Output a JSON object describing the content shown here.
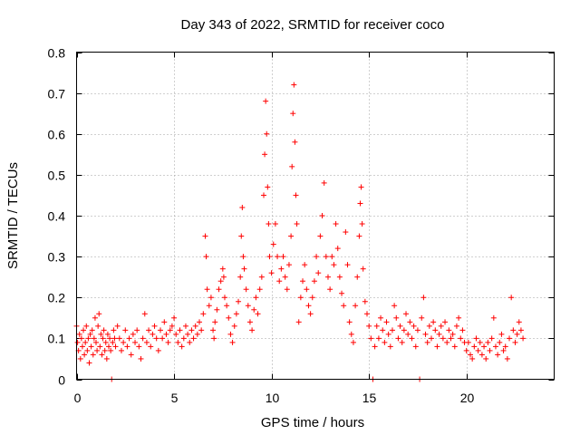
{
  "chart_data": {
    "type": "scatter",
    "title": "Day 343 of 2022, SRMTID for receiver coco",
    "xlabel": "GPS time / hours",
    "ylabel": "SRMTID / TECUs",
    "xlim": [
      0,
      24.5
    ],
    "ylim": [
      0,
      0.8
    ],
    "xticks": [
      0,
      5,
      10,
      15,
      20
    ],
    "xtick_labels": [
      "0",
      "5",
      "10",
      "15",
      "20"
    ],
    "yticks": [
      0,
      0.1,
      0.2,
      0.3,
      0.4,
      0.5,
      0.6,
      0.7,
      0.8
    ],
    "ytick_labels": [
      "0",
      "0.1",
      "0.2",
      "0.3",
      "0.4",
      "0.5",
      "0.6",
      "0.7",
      "0.8"
    ],
    "grid": true,
    "marker": "+",
    "color": "#ff0000",
    "series": [
      {
        "name": "SRMTID",
        "points": [
          [
            0.0,
            0.13
          ],
          [
            0.05,
            0.09
          ],
          [
            0.1,
            0.07
          ],
          [
            0.15,
            0.11
          ],
          [
            0.2,
            0.05
          ],
          [
            0.25,
            0.1
          ],
          [
            0.3,
            0.08
          ],
          [
            0.35,
            0.12
          ],
          [
            0.4,
            0.06
          ],
          [
            0.45,
            0.09
          ],
          [
            0.5,
            0.13
          ],
          [
            0.55,
            0.07
          ],
          [
            0.6,
            0.1
          ],
          [
            0.65,
            0.04
          ],
          [
            0.7,
            0.11
          ],
          [
            0.75,
            0.08
          ],
          [
            0.8,
            0.12
          ],
          [
            0.85,
            0.06
          ],
          [
            0.9,
            0.1
          ],
          [
            0.95,
            0.15
          ],
          [
            1.0,
            0.09
          ],
          [
            1.05,
            0.07
          ],
          [
            1.1,
            0.13
          ],
          [
            1.15,
            0.16
          ],
          [
            1.2,
            0.08
          ],
          [
            1.25,
            0.11
          ],
          [
            1.3,
            0.06
          ],
          [
            1.35,
            0.1
          ],
          [
            1.4,
            0.12
          ],
          [
            1.45,
            0.07
          ],
          [
            1.5,
            0.09
          ],
          [
            1.55,
            0.05
          ],
          [
            1.6,
            0.11
          ],
          [
            1.65,
            0.08
          ],
          [
            1.7,
            0.1
          ],
          [
            1.75,
            0.07
          ],
          [
            1.8,
            0.0
          ],
          [
            1.85,
            0.09
          ],
          [
            1.9,
            0.12
          ],
          [
            1.95,
            0.1
          ],
          [
            2.0,
            0.08
          ],
          [
            2.1,
            0.13
          ],
          [
            2.2,
            0.1
          ],
          [
            2.3,
            0.07
          ],
          [
            2.4,
            0.09
          ],
          [
            2.5,
            0.12
          ],
          [
            2.6,
            0.08
          ],
          [
            2.7,
            0.1
          ],
          [
            2.8,
            0.06
          ],
          [
            2.9,
            0.11
          ],
          [
            3.0,
            0.09
          ],
          [
            3.1,
            0.12
          ],
          [
            3.2,
            0.08
          ],
          [
            3.3,
            0.05
          ],
          [
            3.4,
            0.1
          ],
          [
            3.5,
            0.16
          ],
          [
            3.6,
            0.09
          ],
          [
            3.7,
            0.12
          ],
          [
            3.8,
            0.08
          ],
          [
            3.9,
            0.11
          ],
          [
            4.0,
            0.13
          ],
          [
            4.1,
            0.1
          ],
          [
            4.2,
            0.07
          ],
          [
            4.3,
            0.12
          ],
          [
            4.4,
            0.1
          ],
          [
            4.5,
            0.14
          ],
          [
            4.6,
            0.11
          ],
          [
            4.7,
            0.09
          ],
          [
            4.8,
            0.12
          ],
          [
            4.9,
            0.13
          ],
          [
            5.0,
            0.15
          ],
          [
            5.1,
            0.11
          ],
          [
            5.2,
            0.09
          ],
          [
            5.3,
            0.12
          ],
          [
            5.4,
            0.08
          ],
          [
            5.5,
            0.1
          ],
          [
            5.6,
            0.13
          ],
          [
            5.7,
            0.11
          ],
          [
            5.8,
            0.09
          ],
          [
            5.9,
            0.12
          ],
          [
            6.0,
            0.1
          ],
          [
            6.1,
            0.13
          ],
          [
            6.2,
            0.11
          ],
          [
            6.3,
            0.14
          ],
          [
            6.4,
            0.12
          ],
          [
            6.5,
            0.16
          ],
          [
            6.6,
            0.35
          ],
          [
            6.65,
            0.3
          ],
          [
            6.7,
            0.22
          ],
          [
            6.8,
            0.18
          ],
          [
            6.9,
            0.2
          ],
          [
            7.0,
            0.12
          ],
          [
            7.05,
            0.1
          ],
          [
            7.1,
            0.14
          ],
          [
            7.2,
            0.17
          ],
          [
            7.3,
            0.22
          ],
          [
            7.4,
            0.24
          ],
          [
            7.5,
            0.27
          ],
          [
            7.55,
            0.25
          ],
          [
            7.6,
            0.2
          ],
          [
            7.7,
            0.18
          ],
          [
            7.8,
            0.15
          ],
          [
            7.9,
            0.11
          ],
          [
            8.0,
            0.09
          ],
          [
            8.1,
            0.13
          ],
          [
            8.2,
            0.16
          ],
          [
            8.3,
            0.19
          ],
          [
            8.4,
            0.25
          ],
          [
            8.45,
            0.35
          ],
          [
            8.5,
            0.42
          ],
          [
            8.55,
            0.3
          ],
          [
            8.6,
            0.27
          ],
          [
            8.7,
            0.22
          ],
          [
            8.8,
            0.18
          ],
          [
            8.9,
            0.14
          ],
          [
            9.0,
            0.12
          ],
          [
            9.1,
            0.17
          ],
          [
            9.2,
            0.2
          ],
          [
            9.3,
            0.16
          ],
          [
            9.4,
            0.22
          ],
          [
            9.5,
            0.25
          ],
          [
            9.6,
            0.45
          ],
          [
            9.65,
            0.55
          ],
          [
            9.7,
            0.68
          ],
          [
            9.75,
            0.6
          ],
          [
            9.8,
            0.47
          ],
          [
            9.85,
            0.38
          ],
          [
            9.9,
            0.3
          ],
          [
            10.0,
            0.26
          ],
          [
            10.1,
            0.33
          ],
          [
            10.2,
            0.38
          ],
          [
            10.3,
            0.3
          ],
          [
            10.4,
            0.24
          ],
          [
            10.5,
            0.27
          ],
          [
            10.6,
            0.3
          ],
          [
            10.7,
            0.25
          ],
          [
            10.8,
            0.22
          ],
          [
            10.9,
            0.28
          ],
          [
            11.0,
            0.35
          ],
          [
            11.05,
            0.52
          ],
          [
            11.1,
            0.65
          ],
          [
            11.15,
            0.72
          ],
          [
            11.2,
            0.58
          ],
          [
            11.25,
            0.45
          ],
          [
            11.3,
            0.38
          ],
          [
            11.4,
            0.14
          ],
          [
            11.5,
            0.2
          ],
          [
            11.6,
            0.24
          ],
          [
            11.7,
            0.28
          ],
          [
            11.8,
            0.22
          ],
          [
            11.9,
            0.18
          ],
          [
            12.0,
            0.16
          ],
          [
            12.1,
            0.2
          ],
          [
            12.2,
            0.24
          ],
          [
            12.3,
            0.3
          ],
          [
            12.4,
            0.26
          ],
          [
            12.5,
            0.35
          ],
          [
            12.6,
            0.4
          ],
          [
            12.7,
            0.48
          ],
          [
            12.8,
            0.3
          ],
          [
            12.9,
            0.25
          ],
          [
            13.0,
            0.22
          ],
          [
            13.1,
            0.3
          ],
          [
            13.2,
            0.28
          ],
          [
            13.3,
            0.38
          ],
          [
            13.4,
            0.32
          ],
          [
            13.5,
            0.25
          ],
          [
            13.6,
            0.21
          ],
          [
            13.7,
            0.18
          ],
          [
            13.8,
            0.36
          ],
          [
            13.9,
            0.28
          ],
          [
            14.0,
            0.14
          ],
          [
            14.1,
            0.11
          ],
          [
            14.2,
            0.09
          ],
          [
            14.3,
            0.18
          ],
          [
            14.4,
            0.25
          ],
          [
            14.5,
            0.35
          ],
          [
            14.55,
            0.43
          ],
          [
            14.6,
            0.47
          ],
          [
            14.65,
            0.38
          ],
          [
            14.7,
            0.27
          ],
          [
            14.8,
            0.19
          ],
          [
            14.9,
            0.16
          ],
          [
            15.0,
            0.13
          ],
          [
            15.1,
            0.1
          ],
          [
            15.2,
            0.0
          ],
          [
            15.3,
            0.08
          ],
          [
            15.4,
            0.13
          ],
          [
            15.5,
            0.1
          ],
          [
            15.6,
            0.15
          ],
          [
            15.7,
            0.12
          ],
          [
            15.8,
            0.09
          ],
          [
            15.9,
            0.14
          ],
          [
            16.0,
            0.11
          ],
          [
            16.1,
            0.08
          ],
          [
            16.2,
            0.12
          ],
          [
            16.3,
            0.18
          ],
          [
            16.4,
            0.15
          ],
          [
            16.5,
            0.1
          ],
          [
            16.6,
            0.13
          ],
          [
            16.7,
            0.09
          ],
          [
            16.8,
            0.12
          ],
          [
            16.9,
            0.16
          ],
          [
            17.0,
            0.11
          ],
          [
            17.1,
            0.14
          ],
          [
            17.2,
            0.1
          ],
          [
            17.3,
            0.13
          ],
          [
            17.4,
            0.08
          ],
          [
            17.5,
            0.12
          ],
          [
            17.6,
            0.0
          ],
          [
            17.7,
            0.15
          ],
          [
            17.8,
            0.2
          ],
          [
            17.9,
            0.11
          ],
          [
            18.0,
            0.09
          ],
          [
            18.1,
            0.13
          ],
          [
            18.2,
            0.1
          ],
          [
            18.3,
            0.14
          ],
          [
            18.4,
            0.12
          ],
          [
            18.5,
            0.08
          ],
          [
            18.6,
            0.11
          ],
          [
            18.7,
            0.13
          ],
          [
            18.8,
            0.1
          ],
          [
            18.9,
            0.14
          ],
          [
            19.0,
            0.09
          ],
          [
            19.1,
            0.12
          ],
          [
            19.2,
            0.1
          ],
          [
            19.3,
            0.11
          ],
          [
            19.4,
            0.08
          ],
          [
            19.5,
            0.13
          ],
          [
            19.6,
            0.15
          ],
          [
            19.7,
            0.1
          ],
          [
            19.8,
            0.12
          ],
          [
            19.9,
            0.09
          ],
          [
            20.0,
            0.07
          ],
          [
            20.1,
            0.09
          ],
          [
            20.2,
            0.06
          ],
          [
            20.3,
            0.05
          ],
          [
            20.4,
            0.08
          ],
          [
            20.5,
            0.1
          ],
          [
            20.6,
            0.07
          ],
          [
            20.7,
            0.09
          ],
          [
            20.8,
            0.06
          ],
          [
            20.9,
            0.08
          ],
          [
            21.0,
            0.05
          ],
          [
            21.1,
            0.09
          ],
          [
            21.2,
            0.07
          ],
          [
            21.3,
            0.1
          ],
          [
            21.4,
            0.15
          ],
          [
            21.5,
            0.08
          ],
          [
            21.6,
            0.06
          ],
          [
            21.7,
            0.09
          ],
          [
            21.8,
            0.11
          ],
          [
            21.9,
            0.07
          ],
          [
            22.0,
            0.08
          ],
          [
            22.1,
            0.05
          ],
          [
            22.2,
            0.1
          ],
          [
            22.3,
            0.2
          ],
          [
            22.4,
            0.12
          ],
          [
            22.5,
            0.09
          ],
          [
            22.6,
            0.11
          ],
          [
            22.7,
            0.14
          ],
          [
            22.8,
            0.12
          ],
          [
            22.9,
            0.1
          ]
        ]
      }
    ]
  }
}
